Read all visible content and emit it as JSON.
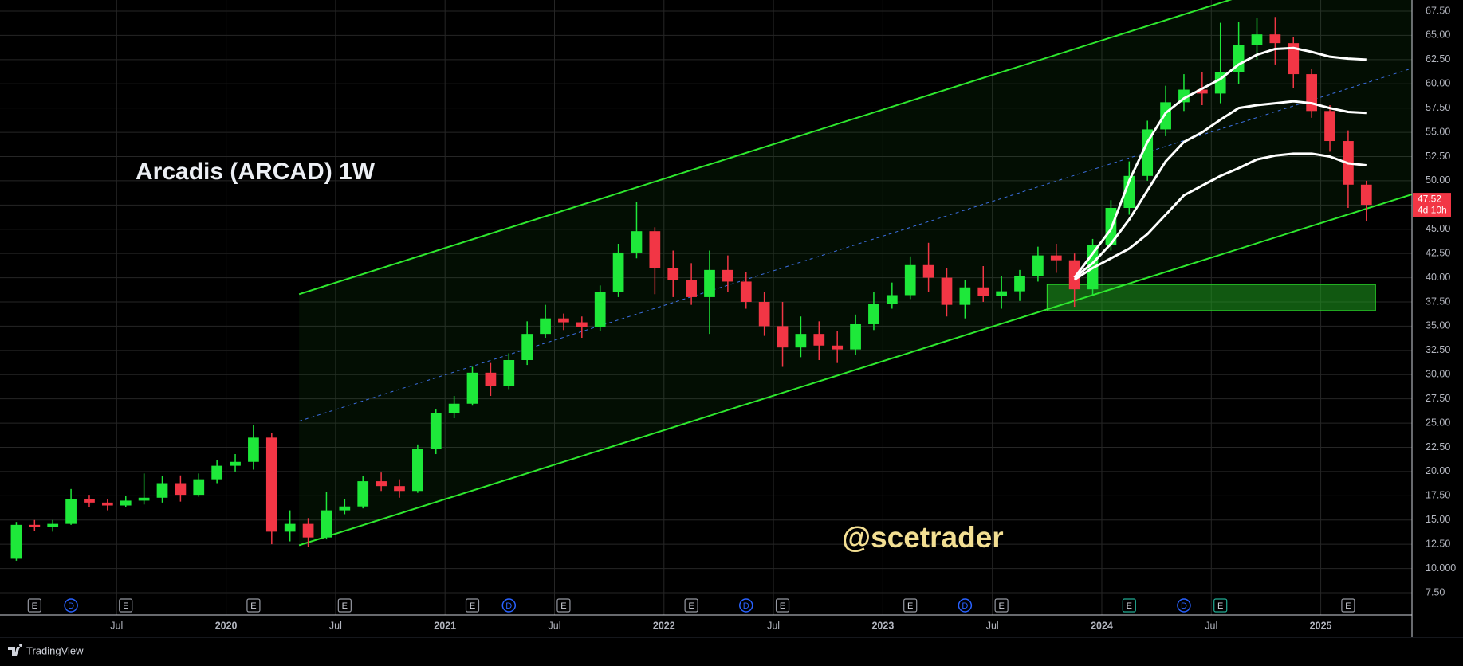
{
  "chart_data": {
    "type": "candlestick",
    "title": "Arcadis (ARCAD) 1W",
    "annotation": "@scetrader",
    "brand": "TradingView",
    "last_price": 47.52,
    "countdown": "4d 10h",
    "up_color": "#1ee83a",
    "down_color": "#f23645",
    "x": [
      "2019-01",
      "2019-02",
      "2019-03",
      "2019-04",
      "2019-05",
      "2019-06",
      "2019-07",
      "2019-08",
      "2019-09",
      "2019-10",
      "2019-11",
      "2019-12",
      "2020-01",
      "2020-02",
      "2020-03",
      "2020-04",
      "2020-05",
      "2020-06",
      "2020-07",
      "2020-08",
      "2020-09",
      "2020-10",
      "2020-11",
      "2020-12",
      "2021-01",
      "2021-02",
      "2021-03",
      "2021-04",
      "2021-05",
      "2021-06",
      "2021-07",
      "2021-08",
      "2021-09",
      "2021-10",
      "2021-11",
      "2021-12",
      "2022-01",
      "2022-02",
      "2022-03",
      "2022-04",
      "2022-05",
      "2022-06",
      "2022-07",
      "2022-08",
      "2022-09",
      "2022-10",
      "2022-11",
      "2022-12",
      "2023-01",
      "2023-02",
      "2023-03",
      "2023-04",
      "2023-05",
      "2023-06",
      "2023-07",
      "2023-08",
      "2023-09",
      "2023-10",
      "2023-11",
      "2023-12",
      "2024-01",
      "2024-02",
      "2024-03",
      "2024-04",
      "2024-05",
      "2024-06",
      "2024-07",
      "2024-08",
      "2024-09",
      "2024-10",
      "2024-11",
      "2024-12",
      "2025-01",
      "2025-02",
      "2025-03"
    ],
    "open": [
      11.0,
      14.5,
      14.3,
      14.6,
      17.2,
      16.8,
      16.5,
      17.0,
      17.3,
      18.8,
      17.6,
      19.2,
      20.6,
      21.0,
      23.5,
      13.8,
      14.6,
      13.2,
      16.0,
      16.4,
      19.0,
      18.5,
      18.0,
      22.3,
      26.0,
      27.0,
      30.2,
      28.8,
      31.5,
      34.2,
      35.8,
      35.4,
      34.9,
      38.5,
      42.6,
      44.8,
      41.0,
      39.8,
      38.0,
      40.8,
      39.6,
      37.5,
      35.0,
      32.8,
      34.2,
      33.0,
      32.6,
      35.2,
      37.3,
      38.2,
      41.3,
      40.0,
      37.2,
      39.0,
      38.1,
      38.6,
      40.2,
      42.3,
      41.8,
      38.8,
      43.4,
      47.2,
      50.5,
      55.3,
      58.1,
      59.4,
      59.0,
      61.2,
      64.0,
      65.1,
      64.2,
      61.0,
      57.2,
      54.1,
      49.6
    ],
    "high": [
      14.8,
      15.0,
      15.0,
      18.2,
      17.6,
      17.2,
      17.5,
      19.8,
      19.5,
      19.6,
      19.8,
      21.2,
      21.8,
      24.8,
      24.0,
      16.0,
      15.2,
      17.9,
      17.2,
      19.5,
      19.9,
      19.2,
      22.8,
      26.4,
      27.8,
      30.8,
      31.2,
      32.2,
      35.5,
      37.2,
      36.3,
      36.0,
      39.2,
      43.5,
      47.8,
      45.2,
      42.8,
      41.5,
      42.8,
      42.3,
      40.6,
      38.5,
      37.5,
      36.0,
      35.5,
      34.5,
      36.2,
      38.5,
      39.5,
      42.2,
      43.6,
      41.0,
      39.8,
      41.2,
      40.2,
      40.8,
      43.2,
      43.5,
      42.5,
      44.0,
      48.0,
      52.0,
      56.2,
      59.8,
      61.0,
      61.2,
      66.3,
      66.4,
      66.8,
      66.9,
      64.8,
      61.5,
      57.8,
      55.2,
      50.0
    ],
    "low": [
      10.8,
      13.9,
      13.8,
      14.5,
      16.3,
      16.0,
      16.3,
      16.6,
      16.8,
      16.9,
      17.4,
      18.8,
      20.0,
      20.2,
      12.5,
      12.8,
      12.2,
      13.0,
      15.6,
      16.2,
      18.0,
      17.3,
      17.8,
      21.8,
      25.5,
      26.8,
      27.8,
      28.5,
      31.0,
      33.8,
      34.6,
      33.8,
      34.5,
      38.0,
      42.0,
      38.3,
      38.0,
      37.2,
      34.2,
      38.5,
      36.8,
      34.0,
      30.8,
      31.8,
      31.5,
      31.2,
      32.0,
      34.6,
      36.8,
      37.8,
      38.5,
      36.0,
      35.8,
      37.5,
      36.8,
      37.6,
      39.6,
      40.5,
      37.0,
      38.2,
      42.8,
      46.5,
      50.0,
      54.6,
      57.2,
      57.8,
      58.0,
      60.0,
      62.5,
      62.0,
      59.6,
      56.5,
      53.0,
      47.2,
      45.8
    ],
    "close": [
      14.5,
      14.3,
      14.6,
      17.2,
      16.8,
      16.5,
      17.0,
      17.3,
      18.8,
      17.6,
      19.2,
      20.6,
      21.0,
      23.5,
      13.8,
      14.6,
      13.2,
      16.0,
      16.4,
      19.0,
      18.5,
      18.0,
      22.3,
      26.0,
      27.0,
      30.2,
      28.8,
      31.5,
      34.2,
      35.8,
      35.4,
      34.9,
      38.5,
      42.6,
      44.8,
      41.0,
      39.8,
      38.0,
      40.8,
      39.6,
      37.5,
      35.0,
      32.8,
      34.2,
      33.0,
      32.6,
      35.2,
      37.3,
      38.2,
      41.3,
      40.0,
      37.2,
      39.0,
      38.1,
      38.6,
      40.2,
      42.3,
      41.8,
      38.8,
      43.4,
      47.2,
      50.5,
      55.3,
      58.1,
      59.4,
      59.0,
      61.2,
      64.0,
      65.1,
      64.2,
      61.0,
      57.2,
      54.1,
      49.6,
      47.52
    ],
    "overlays": [
      {
        "color": "#ffffff",
        "x": [
          "2023-11",
          "2023-12",
          "2024-01",
          "2024-02",
          "2024-03",
          "2024-04",
          "2024-05",
          "2024-06",
          "2024-07",
          "2024-08",
          "2024-09",
          "2024-10",
          "2024-11",
          "2024-12",
          "2025-01",
          "2025-02",
          "2025-03"
        ],
        "values": [
          40.0,
          42.5,
          45.0,
          50.0,
          54.0,
          57.0,
          58.5,
          59.5,
          60.5,
          62.0,
          63.0,
          63.6,
          63.7,
          63.3,
          62.8,
          62.6,
          62.5
        ]
      },
      {
        "color": "#ffffff",
        "x": [
          "2023-11",
          "2023-12",
          "2024-01",
          "2024-02",
          "2024-03",
          "2024-04",
          "2024-05",
          "2024-06",
          "2024-07",
          "2024-08",
          "2024-09",
          "2024-10",
          "2024-11",
          "2024-12",
          "2025-01",
          "2025-02",
          "2025-03"
        ],
        "values": [
          40.0,
          41.5,
          43.5,
          46.0,
          49.0,
          52.0,
          54.0,
          55.0,
          56.3,
          57.5,
          57.8,
          58.0,
          58.2,
          58.0,
          57.5,
          57.1,
          57.0
        ]
      },
      {
        "color": "#ffffff",
        "x": [
          "2023-11",
          "2023-12",
          "2024-01",
          "2024-02",
          "2024-03",
          "2024-04",
          "2024-05",
          "2024-06",
          "2024-07",
          "2024-08",
          "2024-09",
          "2024-10",
          "2024-11",
          "2024-12",
          "2025-01",
          "2025-02",
          "2025-03"
        ],
        "values": [
          39.8,
          41.0,
          42.0,
          43.0,
          44.5,
          46.5,
          48.5,
          49.5,
          50.5,
          51.3,
          52.2,
          52.6,
          52.8,
          52.8,
          52.5,
          51.8,
          51.6
        ]
      }
    ],
    "channel": [
      {
        "color": "#2ee82e",
        "dashed": false,
        "x": [
          "2020-05",
          "2025-06"
        ],
        "values": [
          38.3,
          74.6
        ]
      },
      {
        "color": "#3b6fe0",
        "dashed": true,
        "x": [
          "2020-05",
          "2025-06"
        ],
        "values": [
          25.2,
          61.6
        ]
      },
      {
        "color": "#2ee82e",
        "dashed": false,
        "x": [
          "2020-05",
          "2025-06"
        ],
        "values": [
          12.4,
          48.6
        ]
      }
    ],
    "zone": {
      "color": "#1fa01f",
      "x": [
        "2023-10",
        "2025-04"
      ],
      "values": [
        36.6,
        39.3
      ]
    },
    "events": [
      {
        "x": "2019-02",
        "label": "E",
        "shape": "square",
        "color": "#9598a1"
      },
      {
        "x": "2019-04",
        "label": "D",
        "shape": "circle",
        "color": "#2962ff"
      },
      {
        "x": "2019-07",
        "label": "E",
        "shape": "square",
        "color": "#9598a1"
      },
      {
        "x": "2020-02",
        "label": "E",
        "shape": "square",
        "color": "#9598a1"
      },
      {
        "x": "2020-07",
        "label": "E",
        "shape": "square",
        "color": "#9598a1"
      },
      {
        "x": "2021-02",
        "label": "E",
        "shape": "square",
        "color": "#9598a1"
      },
      {
        "x": "2021-04",
        "label": "D",
        "shape": "circle",
        "color": "#2962ff"
      },
      {
        "x": "2021-07",
        "label": "E",
        "shape": "square",
        "color": "#9598a1"
      },
      {
        "x": "2022-02",
        "label": "E",
        "shape": "square",
        "color": "#9598a1"
      },
      {
        "x": "2022-05",
        "label": "D",
        "shape": "circle",
        "color": "#2962ff"
      },
      {
        "x": "2022-07",
        "label": "E",
        "shape": "square",
        "color": "#9598a1"
      },
      {
        "x": "2023-02",
        "label": "E",
        "shape": "square",
        "color": "#9598a1"
      },
      {
        "x": "2023-05",
        "label": "D",
        "shape": "circle",
        "color": "#2962ff"
      },
      {
        "x": "2023-07",
        "label": "E",
        "shape": "square",
        "color": "#9598a1"
      },
      {
        "x": "2024-02",
        "label": "E",
        "shape": "square",
        "color": "#22ab94"
      },
      {
        "x": "2024-05",
        "label": "D",
        "shape": "circle",
        "color": "#2962ff"
      },
      {
        "x": "2024-07",
        "label": "E",
        "shape": "square",
        "color": "#22ab94"
      },
      {
        "x": "2025-02",
        "label": "E",
        "shape": "square",
        "color": "#9598a1"
      }
    ],
    "xlim": [
      "2019-01",
      "2025-06"
    ],
    "xticks": [
      {
        "value": "2019-07",
        "label": "Jul"
      },
      {
        "value": "2020-01",
        "label": "2020"
      },
      {
        "value": "2020-07",
        "label": "Jul"
      },
      {
        "value": "2021-01",
        "label": "2021"
      },
      {
        "value": "2021-07",
        "label": "Jul"
      },
      {
        "value": "2022-01",
        "label": "2022"
      },
      {
        "value": "2022-07",
        "label": "Jul"
      },
      {
        "value": "2023-01",
        "label": "2023"
      },
      {
        "value": "2023-07",
        "label": "Jul"
      },
      {
        "value": "2024-01",
        "label": "2024"
      },
      {
        "value": "2024-07",
        "label": "Jul"
      },
      {
        "value": "2025-01",
        "label": "2025"
      }
    ],
    "ylim": [
      5.2,
      68.65
    ],
    "yticks": [
      {
        "value": 7.5,
        "label": "7.50"
      },
      {
        "value": 10,
        "label": "10.000"
      },
      {
        "value": 12.5,
        "label": "12.50"
      },
      {
        "value": 15,
        "label": "15.00"
      },
      {
        "value": 17.5,
        "label": "17.50"
      },
      {
        "value": 20,
        "label": "20.00"
      },
      {
        "value": 22.5,
        "label": "22.50"
      },
      {
        "value": 25,
        "label": "25.00"
      },
      {
        "value": 27.5,
        "label": "27.50"
      },
      {
        "value": 30,
        "label": "30.00"
      },
      {
        "value": 32.5,
        "label": "32.50"
      },
      {
        "value": 35,
        "label": "35.00"
      },
      {
        "value": 37.5,
        "label": "37.50"
      },
      {
        "value": 40,
        "label": "40.00"
      },
      {
        "value": 42.5,
        "label": "42.50"
      },
      {
        "value": 45,
        "label": "45.00"
      },
      {
        "value": 47.5,
        "label": "47.50"
      },
      {
        "value": 50,
        "label": "50.00"
      },
      {
        "value": 52.5,
        "label": "52.50"
      },
      {
        "value": 55,
        "label": "55.00"
      },
      {
        "value": 57.5,
        "label": "57.50"
      },
      {
        "value": 60,
        "label": "60.00"
      },
      {
        "value": 62.5,
        "label": "62.50"
      },
      {
        "value": 65,
        "label": "65.00"
      },
      {
        "value": 67.5,
        "label": "67.50"
      }
    ],
    "grid": true
  }
}
